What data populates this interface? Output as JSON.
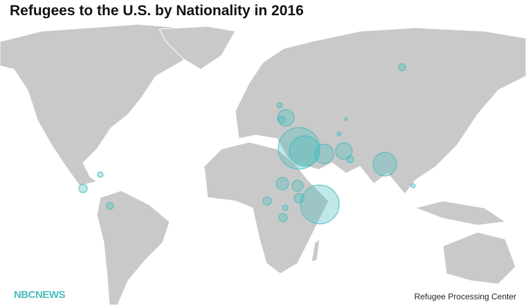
{
  "title": "Refugees to the U.S. by Nationality in 2016",
  "logo": "NBCNEWS",
  "source": "Refugee Processing Center",
  "bubbles": {
    "color": "#4bbdbd",
    "values": [
      14400,
      7744,
      3136,
      2304,
      4624,
      12544,
      2304,
      1296,
      1024,
      784,
      576,
      576,
      400,
      256,
      400,
      576,
      256,
      400,
      400,
      144,
      144,
      64,
      256
    ]
  }
}
